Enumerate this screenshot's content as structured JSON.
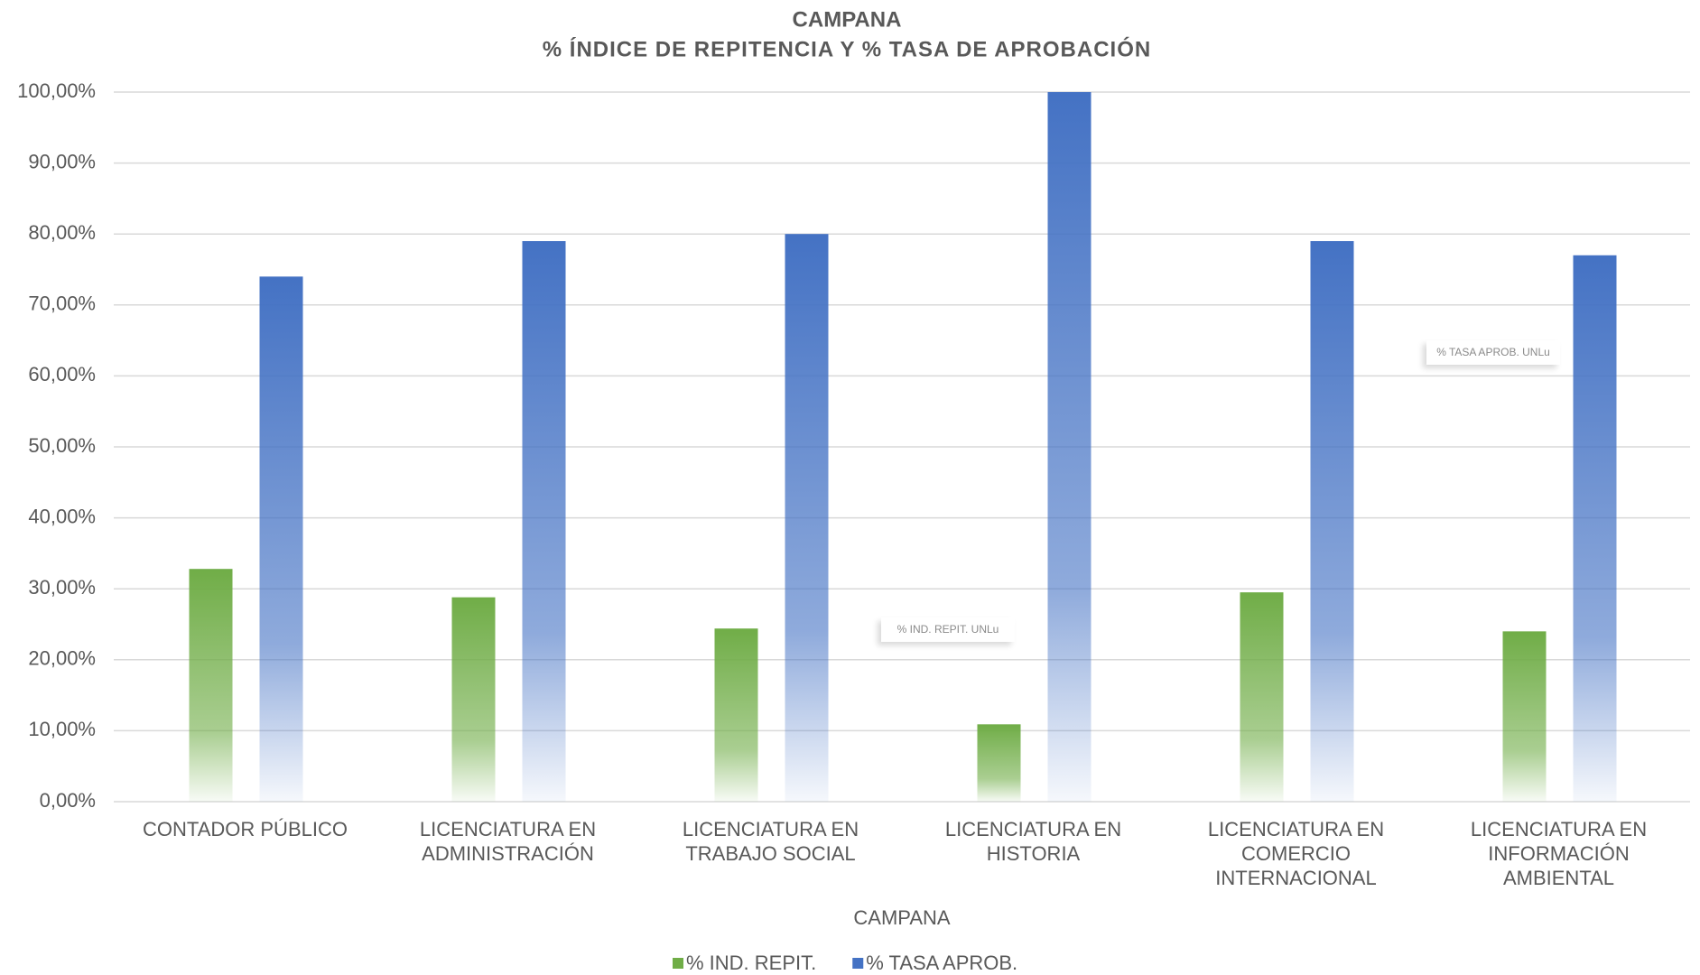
{
  "chart_data": {
    "type": "bar",
    "title": "CAMPANA",
    "subtitle": "% ÍNDICE DE REPITENCIA Y % TASA DE APROBACIÓN",
    "x_label": "CAMPANA",
    "categories": [
      "CONTADOR PÚBLICO",
      "LICENCIATURA EN ADMINISTRACIÓN",
      "LICENCIATURA EN TRABAJO SOCIAL",
      "LICENCIATURA EN HISTORIA",
      "LICENCIATURA EN COMERCIO INTERNACIONAL",
      "LICENCIATURA EN INFORMACIÓN AMBIENTAL"
    ],
    "series": [
      {
        "name": "% IND. REPIT.",
        "color": "#70ad47",
        "values": [
          32.8,
          28.8,
          24.4,
          10.9,
          29.5,
          24.0
        ]
      },
      {
        "name": "% TASA APROB.",
        "color": "#4472c4",
        "values": [
          74,
          79,
          80,
          100,
          79,
          77
        ]
      }
    ],
    "reference_lines": [
      {
        "name": "% TASA APROB. UNLu",
        "value": 69.2,
        "color": "#2f5597"
      },
      {
        "name": "% IND. REPIT. UNLu",
        "value": 31.0,
        "color": "#6a9a3a"
      }
    ],
    "ylim": [
      0,
      100
    ],
    "yticks": [
      {
        "value": 0,
        "label": "0,00%"
      },
      {
        "value": 10,
        "label": "10,00%"
      },
      {
        "value": 20,
        "label": "20,00%"
      },
      {
        "value": 30,
        "label": "30,00%"
      },
      {
        "value": 40,
        "label": "40,00%"
      },
      {
        "value": 50,
        "label": "50,00%"
      },
      {
        "value": 60,
        "label": "60,00%"
      },
      {
        "value": 70,
        "label": "70,00%"
      },
      {
        "value": 80,
        "label": "80,00%"
      },
      {
        "value": 90,
        "label": "90,00%"
      },
      {
        "value": 100,
        "label": "100,00%"
      }
    ],
    "grid": true,
    "legend": "bottom"
  }
}
